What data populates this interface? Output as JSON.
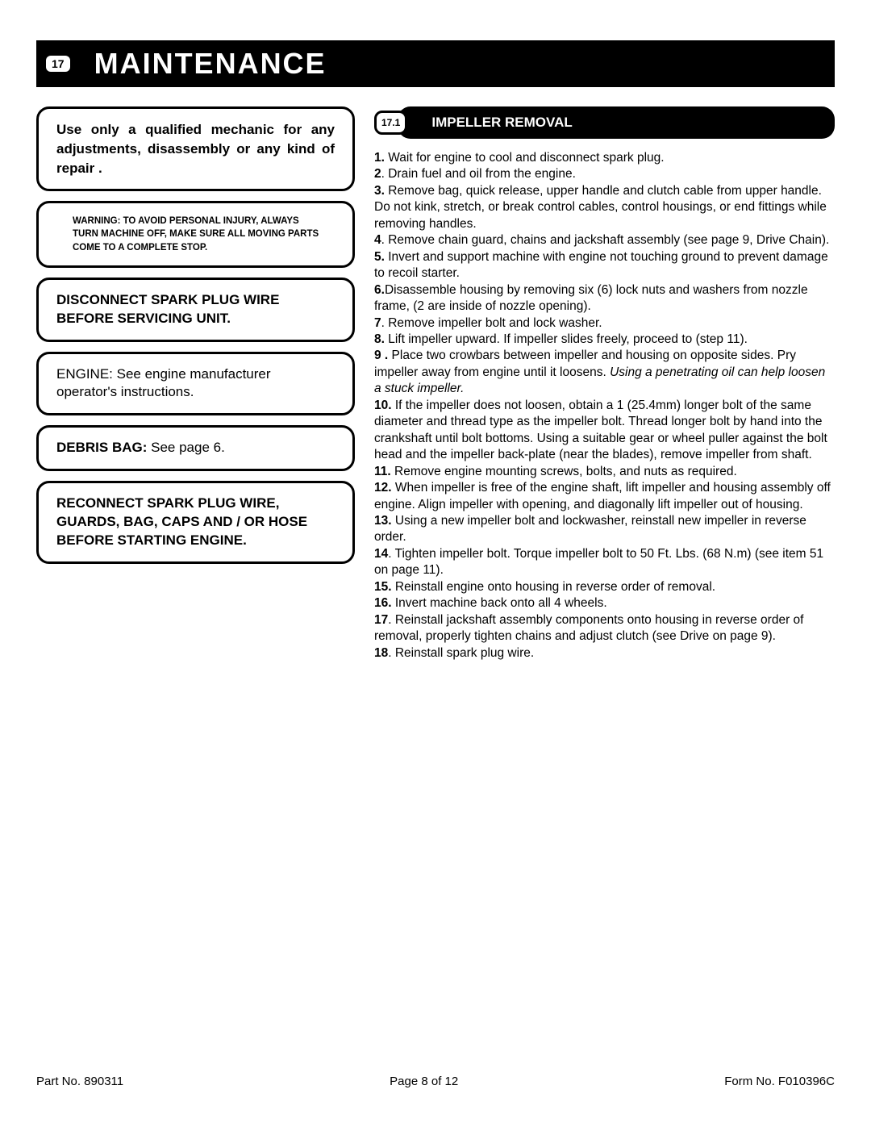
{
  "header": {
    "badge": "17",
    "title": "MAINTENANCE"
  },
  "left": {
    "box_qualified": "Use only a qualified mechanic for any adjustments, disassembly or any kind of repair .",
    "box_warning": "WARNING: TO AVOID PERSONAL INJURY, ALWAYS TURN MACHINE OFF, MAKE SURE ALL MOVING PARTS COME TO A COMPLETE STOP.",
    "box_disconnect": "DISCONNECT SPARK PLUG WIRE BEFORE SERVICING UNIT.",
    "box_engine": "ENGINE: See engine manufacturer operator's instructions.",
    "box_debris_label": "DEBRIS BAG:",
    "box_debris_text": "  See page 6.",
    "box_reconnect": "RECONNECT  SPARK PLUG WIRE, GUARDS, BAG, CAPS AND / OR HOSE BEFORE STARTING ENGINE."
  },
  "sub": {
    "badge": "17.1",
    "title": "IMPELLER REMOVAL"
  },
  "steps": {
    "s1b": "1.",
    "s1": "  Wait for engine to cool and disconnect spark plug.",
    "s2b": "2",
    "s2": ". Drain fuel and oil from the engine.",
    "s3b": "3.",
    "s3": " Remove bag, quick release, upper handle and clutch cable from upper handle. Do not kink, stretch, or break control cables, control housings, or end fittings while removing handles.",
    "s4b": "4",
    "s4": ".  Remove chain guard, chains and jackshaft assembly (see page 9, Drive Chain).",
    "s5b": "5.",
    "s5": "  Invert and support machine with engine not touching ground to prevent damage to recoil starter.",
    "s6b": "6.",
    "s6": "Disassemble housing by removing six (6) lock nuts and washers from nozzle frame, (2 are inside of nozzle opening).",
    "s7b": "7",
    "s7": ".  Remove impeller bolt and lock washer.",
    "s8b": "8.",
    "s8": "  Lift impeller upward. If impeller slides freely, proceed to (step 11).",
    "s9b": "9 .",
    "s9": " Place two crowbars between impeller and housing on opposite sides. Pry impeller away from engine until it loosens. ",
    "s9it": "Using a penetrating oil can help loosen a stuck impeller.",
    "s10b": "10.",
    "s10": " If the impeller does not loosen, obtain a 1   (25.4mm) longer bolt of the same diameter and thread type as the impeller bolt. Thread longer bolt by hand into the crankshaft until bolt bottoms.  Using a suitable gear or wheel puller against the bolt head and the impeller back-plate (near the blades), remove impeller from shaft.",
    "s11b": "11.",
    "s11": " Remove engine mounting screws, bolts, and nuts as required.",
    "s12b": "12.",
    "s12": " When impeller is free of the engine shaft, lift impeller and housing assembly off engine. Align impeller with opening, and diagonally lift impeller out of housing.",
    "s13b": "13.",
    "s13": " Using a new impeller bolt and lockwasher, reinstall new impeller in reverse order.",
    "s14b": "14",
    "s14": ". Tighten impeller bolt. Torque impeller bolt to 50 Ft. Lbs. (68 N.m) (see item 51 on page 11).",
    "s15b": "15.",
    "s15": " Reinstall engine onto housing in reverse order of removal.",
    "s16b": "16.",
    "s16": " Invert machine back onto all 4 wheels.",
    "s17b": "17",
    "s17": ". Reinstall jackshaft assembly components onto housing in reverse order of removal, properly tighten chains and adjust clutch (see Drive on page 9).",
    "s18b": "18",
    "s18": ". Reinstall spark plug wire."
  },
  "footer": {
    "part": "Part No. 890311",
    "page": "Page 8 of 12",
    "form": "Form No. F010396C"
  }
}
